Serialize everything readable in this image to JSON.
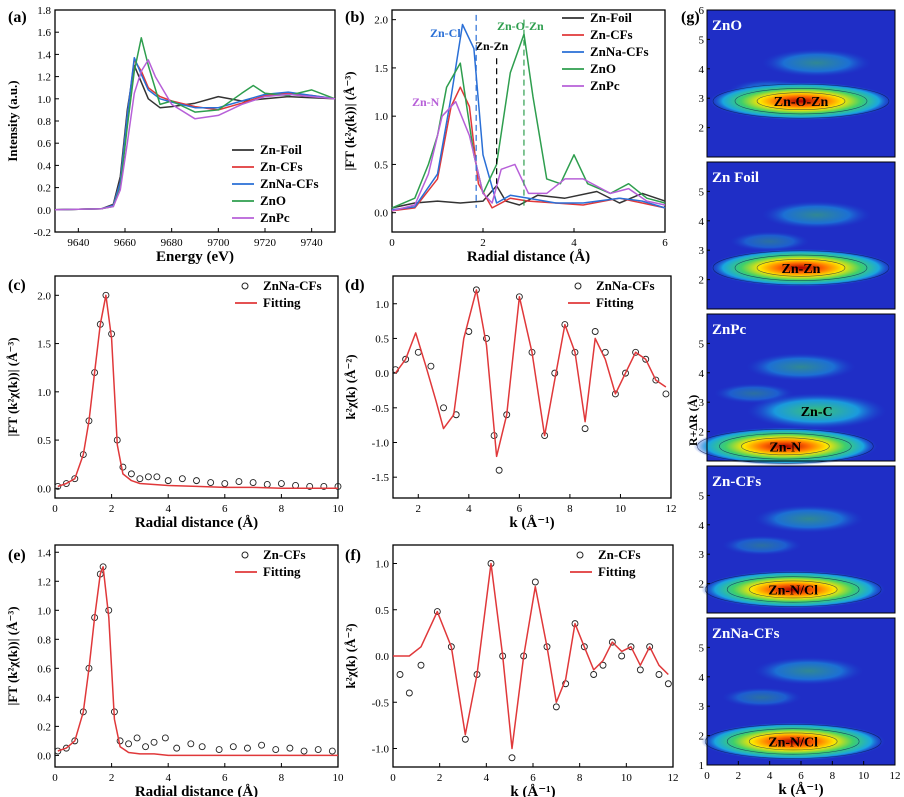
{
  "chart_data": [
    {
      "panel": "(a)",
      "type": "line",
      "xlabel": "Energy (eV)",
      "ylabel": "Intensity (a.u.)",
      "xlim": [
        9630,
        9750
      ],
      "ylim": [
        -0.2,
        1.8
      ],
      "xticks": [
        9640,
        9660,
        9680,
        9700,
        9720,
        9740
      ],
      "yticks": [
        -0.2,
        0.0,
        0.2,
        0.4,
        0.6,
        0.8,
        1.0,
        1.2,
        1.4,
        1.6,
        1.8
      ],
      "legend": "bottom-right",
      "series": [
        {
          "name": "Zn-Foil",
          "color": "#333333",
          "x": [
            9630,
            9650,
            9655,
            9658,
            9661,
            9664,
            9667,
            9670,
            9675,
            9680,
            9690,
            9700,
            9710,
            9720,
            9730,
            9740,
            9750
          ],
          "y": [
            0,
            0.01,
            0.05,
            0.3,
            0.9,
            1.3,
            1.15,
            1.0,
            0.92,
            0.93,
            0.96,
            1.02,
            0.98,
            1.0,
            1.02,
            1.01,
            1.0
          ]
        },
        {
          "name": "Zn-CFs",
          "color": "#e0383a",
          "x": [
            9630,
            9650,
            9655,
            9658,
            9661,
            9664,
            9667,
            9670,
            9675,
            9680,
            9690,
            9700,
            9710,
            9720,
            9730,
            9740,
            9750
          ],
          "y": [
            0,
            0.01,
            0.04,
            0.25,
            0.85,
            1.35,
            1.25,
            1.1,
            1.02,
            0.98,
            0.93,
            0.9,
            0.96,
            1.03,
            1.05,
            1.03,
            1.0
          ]
        },
        {
          "name": "ZnNa-CFs",
          "color": "#2a6fd6",
          "x": [
            9630,
            9650,
            9655,
            9658,
            9661,
            9664,
            9667,
            9670,
            9675,
            9680,
            9690,
            9700,
            9710,
            9720,
            9730,
            9740,
            9750
          ],
          "y": [
            0,
            0.01,
            0.04,
            0.25,
            0.85,
            1.37,
            1.22,
            1.08,
            1.0,
            0.97,
            0.92,
            0.92,
            0.98,
            1.04,
            1.06,
            1.03,
            1.0
          ]
        },
        {
          "name": "ZnO",
          "color": "#2e9e4e",
          "x": [
            9630,
            9650,
            9655,
            9658,
            9661,
            9664,
            9667,
            9670,
            9675,
            9680,
            9690,
            9700,
            9710,
            9715,
            9720,
            9730,
            9740,
            9750
          ],
          "y": [
            0,
            0.01,
            0.03,
            0.2,
            0.75,
            1.25,
            1.55,
            1.3,
            0.95,
            0.98,
            0.88,
            0.9,
            1.05,
            1.12,
            1.05,
            1.03,
            1.08,
            1.0
          ]
        },
        {
          "name": "ZnPc",
          "color": "#b760d8",
          "x": [
            9630,
            9650,
            9655,
            9658,
            9661,
            9664,
            9667,
            9670,
            9673,
            9680,
            9690,
            9700,
            9710,
            9720,
            9730,
            9740,
            9750
          ],
          "y": [
            0,
            0.01,
            0.03,
            0.18,
            0.6,
            1.05,
            1.25,
            1.35,
            1.2,
            0.95,
            0.82,
            0.85,
            0.95,
            1.02,
            1.04,
            1.02,
            1.0
          ]
        }
      ]
    },
    {
      "panel": "(b)",
      "type": "line",
      "xlabel": "Radial distance (Å)",
      "ylabel": "|FT (k²χ(k))| (Å⁻³)",
      "xlim": [
        0,
        6
      ],
      "ylim": [
        -0.2,
        2.1
      ],
      "xticks": [
        0,
        2,
        4,
        6
      ],
      "yticks": [
        0.0,
        0.5,
        1.0,
        1.5,
        2.0
      ],
      "legend": "top-right",
      "annotations": [
        "Zn-Cl",
        "Zn-O-Zn",
        "Zn-Zn",
        "Zn-N"
      ],
      "series": [
        {
          "name": "Zn-Foil",
          "color": "#333333",
          "x": [
            0,
            0.5,
            1.0,
            1.5,
            2.0,
            2.3,
            2.5,
            2.8,
            3.2,
            3.8,
            4.5,
            5.0,
            5.5,
            6.0
          ],
          "y": [
            0.05,
            0.1,
            0.12,
            0.1,
            0.12,
            0.28,
            0.12,
            0.08,
            0.18,
            0.15,
            0.22,
            0.1,
            0.2,
            0.12
          ]
        },
        {
          "name": "Zn-CFs",
          "color": "#e0383a",
          "x": [
            0,
            0.5,
            1.0,
            1.3,
            1.5,
            1.7,
            1.9,
            2.2,
            2.6,
            3.0,
            3.6,
            4.2,
            5.0,
            5.5,
            6.0
          ],
          "y": [
            0.02,
            0.05,
            0.35,
            1.1,
            1.3,
            1.1,
            0.3,
            0.05,
            0.15,
            0.12,
            0.1,
            0.08,
            0.15,
            0.1,
            0.05
          ]
        },
        {
          "name": "ZnNa-CFs",
          "color": "#2a6fd6",
          "x": [
            0,
            0.5,
            1.0,
            1.3,
            1.55,
            1.8,
            2.0,
            2.3,
            2.6,
            3.0,
            3.6,
            4.2,
            5.0,
            5.5,
            6.0
          ],
          "y": [
            0.03,
            0.06,
            0.4,
            1.2,
            1.95,
            1.7,
            0.6,
            0.1,
            0.18,
            0.15,
            0.1,
            0.1,
            0.15,
            0.12,
            0.05
          ]
        },
        {
          "name": "ZnO",
          "color": "#2e9e4e",
          "x": [
            0,
            0.5,
            0.8,
            1.0,
            1.2,
            1.5,
            1.8,
            2.0,
            2.3,
            2.6,
            2.9,
            3.1,
            3.4,
            3.7,
            4.0,
            4.3,
            4.8,
            5.2,
            5.6,
            6.0
          ],
          "y": [
            0.05,
            0.15,
            0.5,
            0.8,
            1.3,
            1.55,
            0.6,
            0.2,
            0.5,
            1.45,
            1.85,
            1.2,
            0.35,
            0.3,
            0.6,
            0.3,
            0.2,
            0.3,
            0.15,
            0.1
          ]
        },
        {
          "name": "ZnPc",
          "color": "#b760d8",
          "x": [
            0,
            0.5,
            0.8,
            1.1,
            1.4,
            1.7,
            2.0,
            2.2,
            2.4,
            2.7,
            3.0,
            3.4,
            3.8,
            4.2,
            4.8,
            5.2,
            5.6,
            6.0
          ],
          "y": [
            0.02,
            0.08,
            0.4,
            1.0,
            1.15,
            0.8,
            0.2,
            0.1,
            0.45,
            0.5,
            0.2,
            0.2,
            0.35,
            0.35,
            0.2,
            0.25,
            0.12,
            0.08
          ]
        }
      ]
    },
    {
      "panel": "(c)",
      "type": "line",
      "xlabel": "Radial distance (Å)",
      "ylabel": "|FT (k²χ(k))| (Å⁻³)",
      "xlim": [
        0,
        10
      ],
      "ylim": [
        -0.1,
        2.2
      ],
      "xticks": [
        0,
        2,
        4,
        6,
        8,
        10
      ],
      "yticks": [
        0.0,
        0.5,
        1.0,
        1.5,
        2.0
      ],
      "legend": "top-right",
      "series": [
        {
          "name": "ZnNa-CFs",
          "style": "markers",
          "color": "#222222",
          "x": [
            0.1,
            0.4,
            0.7,
            1.0,
            1.2,
            1.4,
            1.6,
            1.8,
            2.0,
            2.2,
            2.4,
            2.7,
            3.0,
            3.3,
            3.6,
            4.0,
            4.5,
            5.0,
            5.5,
            6.0,
            6.5,
            7.0,
            7.5,
            8.0,
            8.5,
            9.0,
            9.5,
            10.0
          ],
          "y": [
            0.02,
            0.05,
            0.1,
            0.35,
            0.7,
            1.2,
            1.7,
            2.0,
            1.6,
            0.5,
            0.22,
            0.15,
            0.1,
            0.12,
            0.12,
            0.08,
            0.1,
            0.08,
            0.06,
            0.05,
            0.07,
            0.06,
            0.04,
            0.05,
            0.03,
            0.02,
            0.02,
            0.02
          ]
        },
        {
          "name": "Fitting",
          "color": "#e0383a",
          "x": [
            0.1,
            0.4,
            0.7,
            1.0,
            1.2,
            1.4,
            1.6,
            1.8,
            2.0,
            2.2,
            2.4,
            2.7,
            3.0,
            3.5,
            4.0,
            5.0,
            6.0,
            7.0,
            8.0,
            9.0,
            10.0
          ],
          "y": [
            0.02,
            0.05,
            0.1,
            0.35,
            0.7,
            1.2,
            1.7,
            2.0,
            1.55,
            0.45,
            0.15,
            0.08,
            0.05,
            0.04,
            0.03,
            0.02,
            0.01,
            0.01,
            0.0,
            0.0,
            0.0
          ]
        }
      ]
    },
    {
      "panel": "(d)",
      "type": "line",
      "xlabel": "k (Å⁻¹)",
      "ylabel": "k²χ(k) (Å⁻²)",
      "xlim": [
        1,
        12
      ],
      "ylim": [
        -1.8,
        1.4
      ],
      "xticks": [
        2,
        4,
        6,
        8,
        10,
        12
      ],
      "yticks": [
        -1.5,
        -1.0,
        -0.5,
        0.0,
        0.5,
        1.0
      ],
      "legend": "top-right",
      "series": [
        {
          "name": "ZnNa-CFs",
          "style": "markers",
          "color": "#222222",
          "x": [
            1.1,
            1.5,
            2.0,
            2.5,
            3.0,
            3.5,
            4.0,
            4.3,
            4.7,
            5.0,
            5.2,
            5.5,
            6.0,
            6.5,
            7.0,
            7.4,
            7.8,
            8.2,
            8.6,
            9.0,
            9.4,
            9.8,
            10.2,
            10.6,
            11.0,
            11.4,
            11.8
          ],
          "y": [
            0.05,
            0.2,
            0.3,
            0.1,
            -0.5,
            -0.6,
            0.6,
            1.2,
            0.5,
            -0.9,
            -1.4,
            -0.6,
            1.1,
            0.3,
            -0.9,
            0.0,
            0.7,
            0.3,
            -0.8,
            0.6,
            0.3,
            -0.3,
            0.0,
            0.3,
            0.2,
            -0.1,
            -0.3
          ]
        },
        {
          "name": "Fitting",
          "color": "#e0383a",
          "x": [
            1.1,
            1.5,
            1.9,
            2.3,
            2.7,
            3.0,
            3.4,
            3.8,
            4.3,
            4.7,
            5.1,
            5.5,
            6.0,
            6.5,
            7.0,
            7.4,
            7.8,
            8.2,
            8.6,
            9.0,
            9.4,
            9.8,
            10.2,
            10.6,
            11.0,
            11.4,
            11.8
          ],
          "y": [
            0.0,
            0.2,
            0.58,
            0.1,
            -0.4,
            -0.8,
            -0.6,
            0.5,
            1.2,
            0.4,
            -1.2,
            -0.6,
            1.1,
            0.3,
            -0.9,
            -0.1,
            0.7,
            0.3,
            -0.7,
            0.5,
            0.2,
            -0.3,
            0.0,
            0.3,
            0.2,
            -0.1,
            -0.2
          ]
        }
      ]
    },
    {
      "panel": "(e)",
      "type": "line",
      "xlabel": "Radial distance (Å)",
      "ylabel": "|FT (k²χ(k))| (Å⁻³)",
      "xlim": [
        0,
        10
      ],
      "ylim": [
        -0.08,
        1.45
      ],
      "xticks": [
        0,
        2,
        4,
        6,
        8,
        10
      ],
      "yticks": [
        0.0,
        0.2,
        0.4,
        0.6,
        0.8,
        1.0,
        1.2,
        1.4
      ],
      "legend": "top-right",
      "series": [
        {
          "name": "Zn-CFs",
          "style": "markers",
          "color": "#222222",
          "x": [
            0.1,
            0.4,
            0.7,
            1.0,
            1.2,
            1.4,
            1.6,
            1.7,
            1.9,
            2.1,
            2.3,
            2.6,
            2.9,
            3.2,
            3.5,
            3.9,
            4.3,
            4.8,
            5.2,
            5.8,
            6.3,
            6.8,
            7.3,
            7.8,
            8.3,
            8.8,
            9.3,
            9.8
          ],
          "y": [
            0.03,
            0.05,
            0.1,
            0.3,
            0.6,
            0.95,
            1.25,
            1.3,
            1.0,
            0.3,
            0.1,
            0.08,
            0.12,
            0.06,
            0.09,
            0.12,
            0.05,
            0.08,
            0.06,
            0.04,
            0.06,
            0.05,
            0.07,
            0.04,
            0.05,
            0.03,
            0.04,
            0.03
          ]
        },
        {
          "name": "Fitting",
          "color": "#e0383a",
          "x": [
            0.1,
            0.4,
            0.7,
            1.0,
            1.2,
            1.4,
            1.6,
            1.7,
            1.9,
            2.1,
            2.3,
            2.6,
            3.0,
            3.5,
            4.0,
            5.0,
            6.0,
            7.0,
            8.0,
            9.0,
            10.0
          ],
          "y": [
            0.03,
            0.05,
            0.1,
            0.3,
            0.6,
            0.95,
            1.25,
            1.3,
            0.95,
            0.25,
            0.06,
            0.02,
            0.01,
            0.01,
            0.0,
            0.0,
            0.0,
            0.0,
            0.0,
            0.0,
            0.0
          ]
        }
      ]
    },
    {
      "panel": "(f)",
      "type": "line",
      "xlabel": "k (Å⁻¹)",
      "ylabel": "k²χ(k) (Å⁻²)",
      "xlim": [
        0,
        12
      ],
      "ylim": [
        -1.2,
        1.2
      ],
      "xticks": [
        0,
        2,
        4,
        6,
        8,
        10,
        12
      ],
      "yticks": [
        -1.0,
        -0.5,
        0.0,
        0.5,
        1.0
      ],
      "legend": "top-right",
      "series": [
        {
          "name": "Zn-CFs",
          "style": "markers",
          "color": "#222222",
          "x": [
            0.3,
            0.7,
            1.2,
            1.9,
            2.5,
            3.1,
            3.6,
            4.2,
            4.7,
            5.1,
            5.6,
            6.1,
            6.6,
            7.0,
            7.4,
            7.8,
            8.2,
            8.6,
            9.0,
            9.4,
            9.8,
            10.2,
            10.6,
            11.0,
            11.4,
            11.8
          ],
          "y": [
            -0.2,
            -0.4,
            -0.1,
            0.48,
            0.1,
            -0.9,
            -0.2,
            1.0,
            0.0,
            -1.1,
            0.0,
            0.8,
            0.1,
            -0.55,
            -0.3,
            0.35,
            0.1,
            -0.2,
            -0.1,
            0.15,
            0.0,
            0.1,
            -0.15,
            0.1,
            -0.2,
            -0.3
          ]
        },
        {
          "name": "Fitting",
          "color": "#e0383a",
          "x": [
            0.0,
            0.7,
            1.2,
            1.9,
            2.5,
            3.1,
            3.6,
            4.2,
            4.7,
            5.1,
            5.6,
            6.1,
            6.6,
            7.0,
            7.4,
            7.8,
            8.2,
            8.6,
            9.0,
            9.4,
            9.8,
            10.2,
            10.6,
            11.0,
            11.4,
            11.8
          ],
          "y": [
            0.0,
            0.0,
            0.1,
            0.48,
            0.1,
            -0.85,
            -0.2,
            1.0,
            0.0,
            -1.0,
            0.0,
            0.75,
            0.1,
            -0.5,
            -0.25,
            0.35,
            0.1,
            -0.15,
            -0.05,
            0.15,
            0.05,
            0.1,
            -0.1,
            0.1,
            -0.1,
            -0.2
          ]
        }
      ]
    },
    {
      "panel": "(g)",
      "type": "heatmap",
      "xlabel": "k (Å⁻¹)",
      "ylabel": "R+ΔR (Å)",
      "xlim": [
        0,
        12
      ],
      "ylim": [
        1,
        6
      ],
      "xticks": [
        0,
        2,
        4,
        6,
        8,
        10,
        12
      ],
      "yticks": [
        1,
        2,
        3,
        4,
        5,
        6
      ],
      "subpanels": [
        {
          "title": "ZnO",
          "label": "Zn-O-Zn",
          "peak_k": 6.0,
          "peak_r": 2.9
        },
        {
          "title": "Zn Foil",
          "label": "Zn-Zn",
          "peak_k": 6.0,
          "peak_r": 2.4
        },
        {
          "title": "ZnPc",
          "label": "Zn-C",
          "label2": "Zn-N",
          "peak_k": 5.0,
          "peak_r": 1.5
        },
        {
          "title": "Zn-CFs",
          "label": "Zn-N/Cl",
          "peak_k": 5.5,
          "peak_r": 1.8
        },
        {
          "title": "ZnNa-CFs",
          "label": "Zn-N/Cl",
          "peak_k": 5.5,
          "peak_r": 1.8
        }
      ]
    }
  ],
  "panel_labels": [
    "(a)",
    "(b)",
    "(c)",
    "(d)",
    "(e)",
    "(f)",
    "(g)"
  ]
}
